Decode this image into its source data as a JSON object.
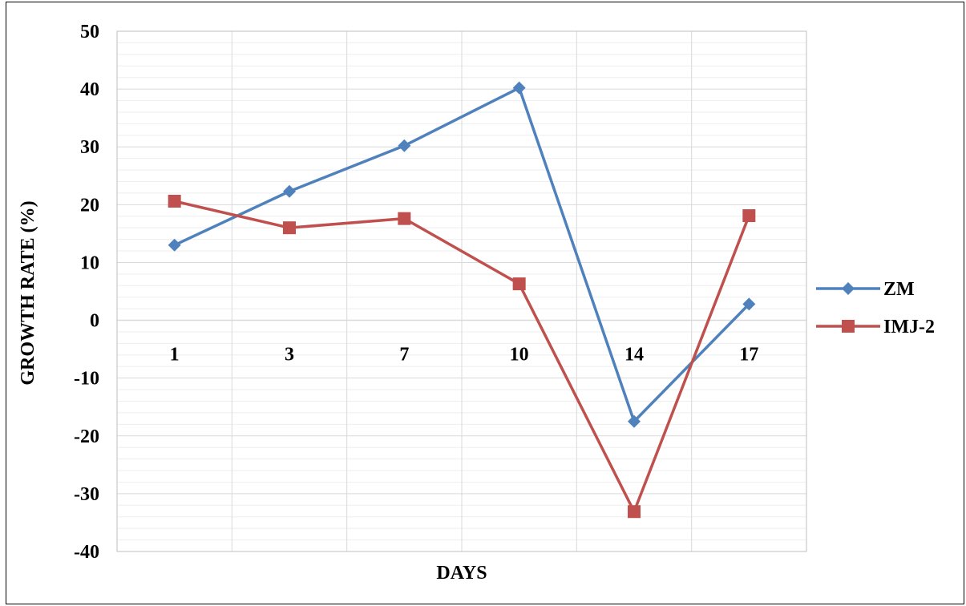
{
  "chart_data": {
    "type": "line",
    "categories": [
      "1",
      "3",
      "7",
      "10",
      "14",
      "17"
    ],
    "series": [
      {
        "name": "ZM",
        "values": [
          13,
          22.3,
          30.2,
          40.2,
          -17.5,
          2.8
        ],
        "color": "#4F81BD",
        "marker": "diamond"
      },
      {
        "name": "IMJ-2",
        "values": [
          20.6,
          16,
          17.6,
          6.3,
          -33.1,
          18.1
        ],
        "color": "#C0504D",
        "marker": "square"
      }
    ],
    "ylim": [
      -40,
      50
    ],
    "ymajor": 10,
    "yminor": 2,
    "ylabel": "GROWTH RATE (%)",
    "xlabel": "DAYS",
    "grid": true,
    "legend": "right"
  }
}
